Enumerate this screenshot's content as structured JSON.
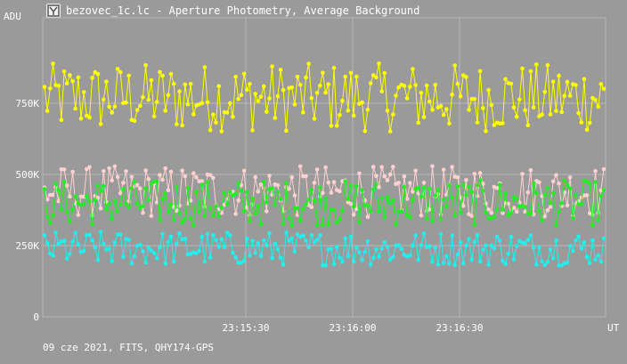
{
  "window": {
    "title": "bezovec_1c.lc - Aperture Photometry, Average Background",
    "icon": "aperture-app-icon"
  },
  "plot": {
    "y_unit": "ADU",
    "x_unit": "UT",
    "footer": "09 cze 2021, FITS, QHY174-GPS"
  },
  "chart_data": {
    "type": "scatter",
    "xlabel": "UT",
    "ylabel": "ADU",
    "ylim": [
      0,
      1050000
    ],
    "xlim": [
      "23:14:33",
      "23:17:11"
    ],
    "x_ticks": [
      "23:15:30",
      "23:16:00",
      "23:16:30"
    ],
    "y_ticks": [
      "0",
      "250K",
      "500K",
      "750K"
    ],
    "y_tick_values": [
      0,
      250000,
      500000,
      750000
    ],
    "grid": true,
    "series": [
      {
        "color": "#ffff00",
        "approx_level": 770000,
        "spread": 120000
      },
      {
        "color": "#ffd0d0",
        "approx_level": 440000,
        "spread": 90000
      },
      {
        "color": "#22ee22",
        "approx_level": 400000,
        "spread": 80000
      },
      {
        "color": "#22eeee",
        "approx_level": 240000,
        "spread": 60000
      }
    ]
  }
}
